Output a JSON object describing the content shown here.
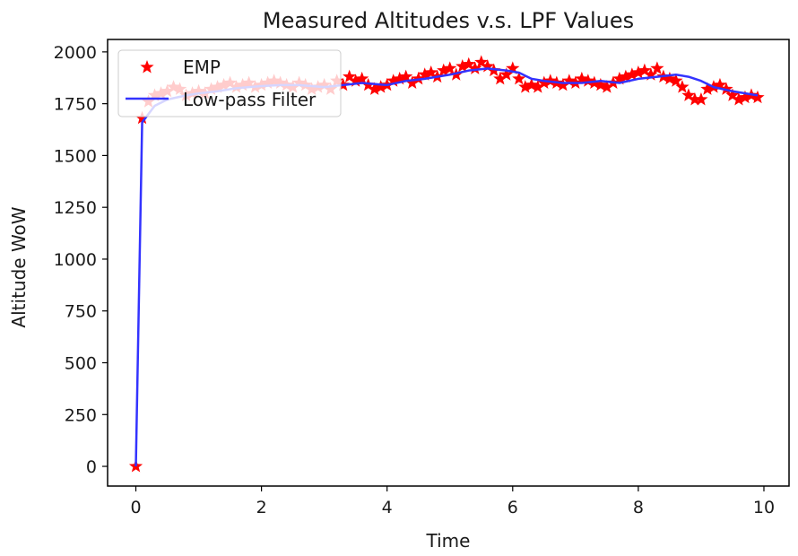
{
  "chart_data": {
    "type": "line",
    "title": "Measured Altitudes v.s. LPF Values",
    "xlabel": "Time",
    "ylabel": "Altitude WoW",
    "xlim": [
      -0.45,
      10.4
    ],
    "ylim": [
      -95,
      2060
    ],
    "xticks": [
      0,
      2,
      4,
      6,
      8,
      10
    ],
    "yticks": [
      0,
      250,
      500,
      750,
      1000,
      1250,
      1500,
      1750,
      2000
    ],
    "grid": false,
    "legend_position": "top-left",
    "series": [
      {
        "name": "EMP",
        "style": "star-marker",
        "color": "#ff0000",
        "x": [
          0,
          0.1,
          0.2,
          0.3,
          0.4,
          0.5,
          0.6,
          0.7,
          0.8,
          0.9,
          1.0,
          1.1,
          1.2,
          1.3,
          1.4,
          1.5,
          1.6,
          1.7,
          1.8,
          1.9,
          2.0,
          2.1,
          2.2,
          2.3,
          2.4,
          2.5,
          2.6,
          2.7,
          2.8,
          2.9,
          3.0,
          3.1,
          3.2,
          3.3,
          3.4,
          3.5,
          3.6,
          3.7,
          3.8,
          3.9,
          4.0,
          4.1,
          4.2,
          4.3,
          4.4,
          4.5,
          4.6,
          4.7,
          4.8,
          4.9,
          5.0,
          5.1,
          5.2,
          5.3,
          5.4,
          5.5,
          5.6,
          5.7,
          5.8,
          5.9,
          6.0,
          6.1,
          6.2,
          6.3,
          6.4,
          6.5,
          6.6,
          6.7,
          6.8,
          6.9,
          7.0,
          7.1,
          7.2,
          7.3,
          7.4,
          7.5,
          7.6,
          7.7,
          7.8,
          7.9,
          8.0,
          8.1,
          8.2,
          8.3,
          8.4,
          8.5,
          8.6,
          8.7,
          8.8,
          8.9,
          9.0,
          9.1,
          9.2,
          9.3,
          9.4,
          9.5,
          9.6,
          9.7,
          9.8,
          9.9
        ],
        "values": [
          0,
          1680,
          1760,
          1790,
          1800,
          1810,
          1830,
          1820,
          1790,
          1800,
          1810,
          1800,
          1820,
          1830,
          1840,
          1850,
          1830,
          1840,
          1850,
          1830,
          1840,
          1850,
          1860,
          1850,
          1840,
          1830,
          1850,
          1840,
          1820,
          1830,
          1840,
          1820,
          1860,
          1840,
          1880,
          1860,
          1870,
          1840,
          1820,
          1830,
          1840,
          1860,
          1870,
          1880,
          1850,
          1870,
          1890,
          1900,
          1880,
          1910,
          1920,
          1890,
          1930,
          1940,
          1920,
          1950,
          1930,
          1910,
          1870,
          1890,
          1920,
          1870,
          1830,
          1840,
          1830,
          1850,
          1860,
          1850,
          1840,
          1860,
          1850,
          1870,
          1860,
          1850,
          1840,
          1830,
          1850,
          1870,
          1880,
          1890,
          1900,
          1910,
          1890,
          1920,
          1880,
          1870,
          1860,
          1830,
          1790,
          1770,
          1770,
          1820,
          1830,
          1840,
          1820,
          1790,
          1770,
          1780,
          1790,
          1780
        ]
      },
      {
        "name": "Low-pass Filter",
        "style": "line",
        "color": "#3333ff",
        "x": [
          0,
          0.1,
          0.3,
          0.5,
          0.8,
          1.0,
          1.3,
          1.6,
          2.0,
          2.3,
          2.6,
          3.0,
          3.3,
          3.6,
          4.0,
          4.3,
          4.6,
          5.0,
          5.3,
          5.6,
          5.9,
          6.1,
          6.3,
          6.5,
          6.8,
          7.1,
          7.4,
          7.7,
          8.0,
          8.3,
          8.6,
          8.8,
          9.0,
          9.2,
          9.5,
          9.9
        ],
        "values": [
          0,
          1660,
          1740,
          1770,
          1790,
          1800,
          1810,
          1825,
          1835,
          1840,
          1840,
          1830,
          1840,
          1850,
          1840,
          1860,
          1870,
          1890,
          1910,
          1920,
          1910,
          1900,
          1870,
          1860,
          1850,
          1850,
          1860,
          1850,
          1870,
          1880,
          1890,
          1880,
          1860,
          1830,
          1810,
          1790
        ]
      }
    ]
  }
}
